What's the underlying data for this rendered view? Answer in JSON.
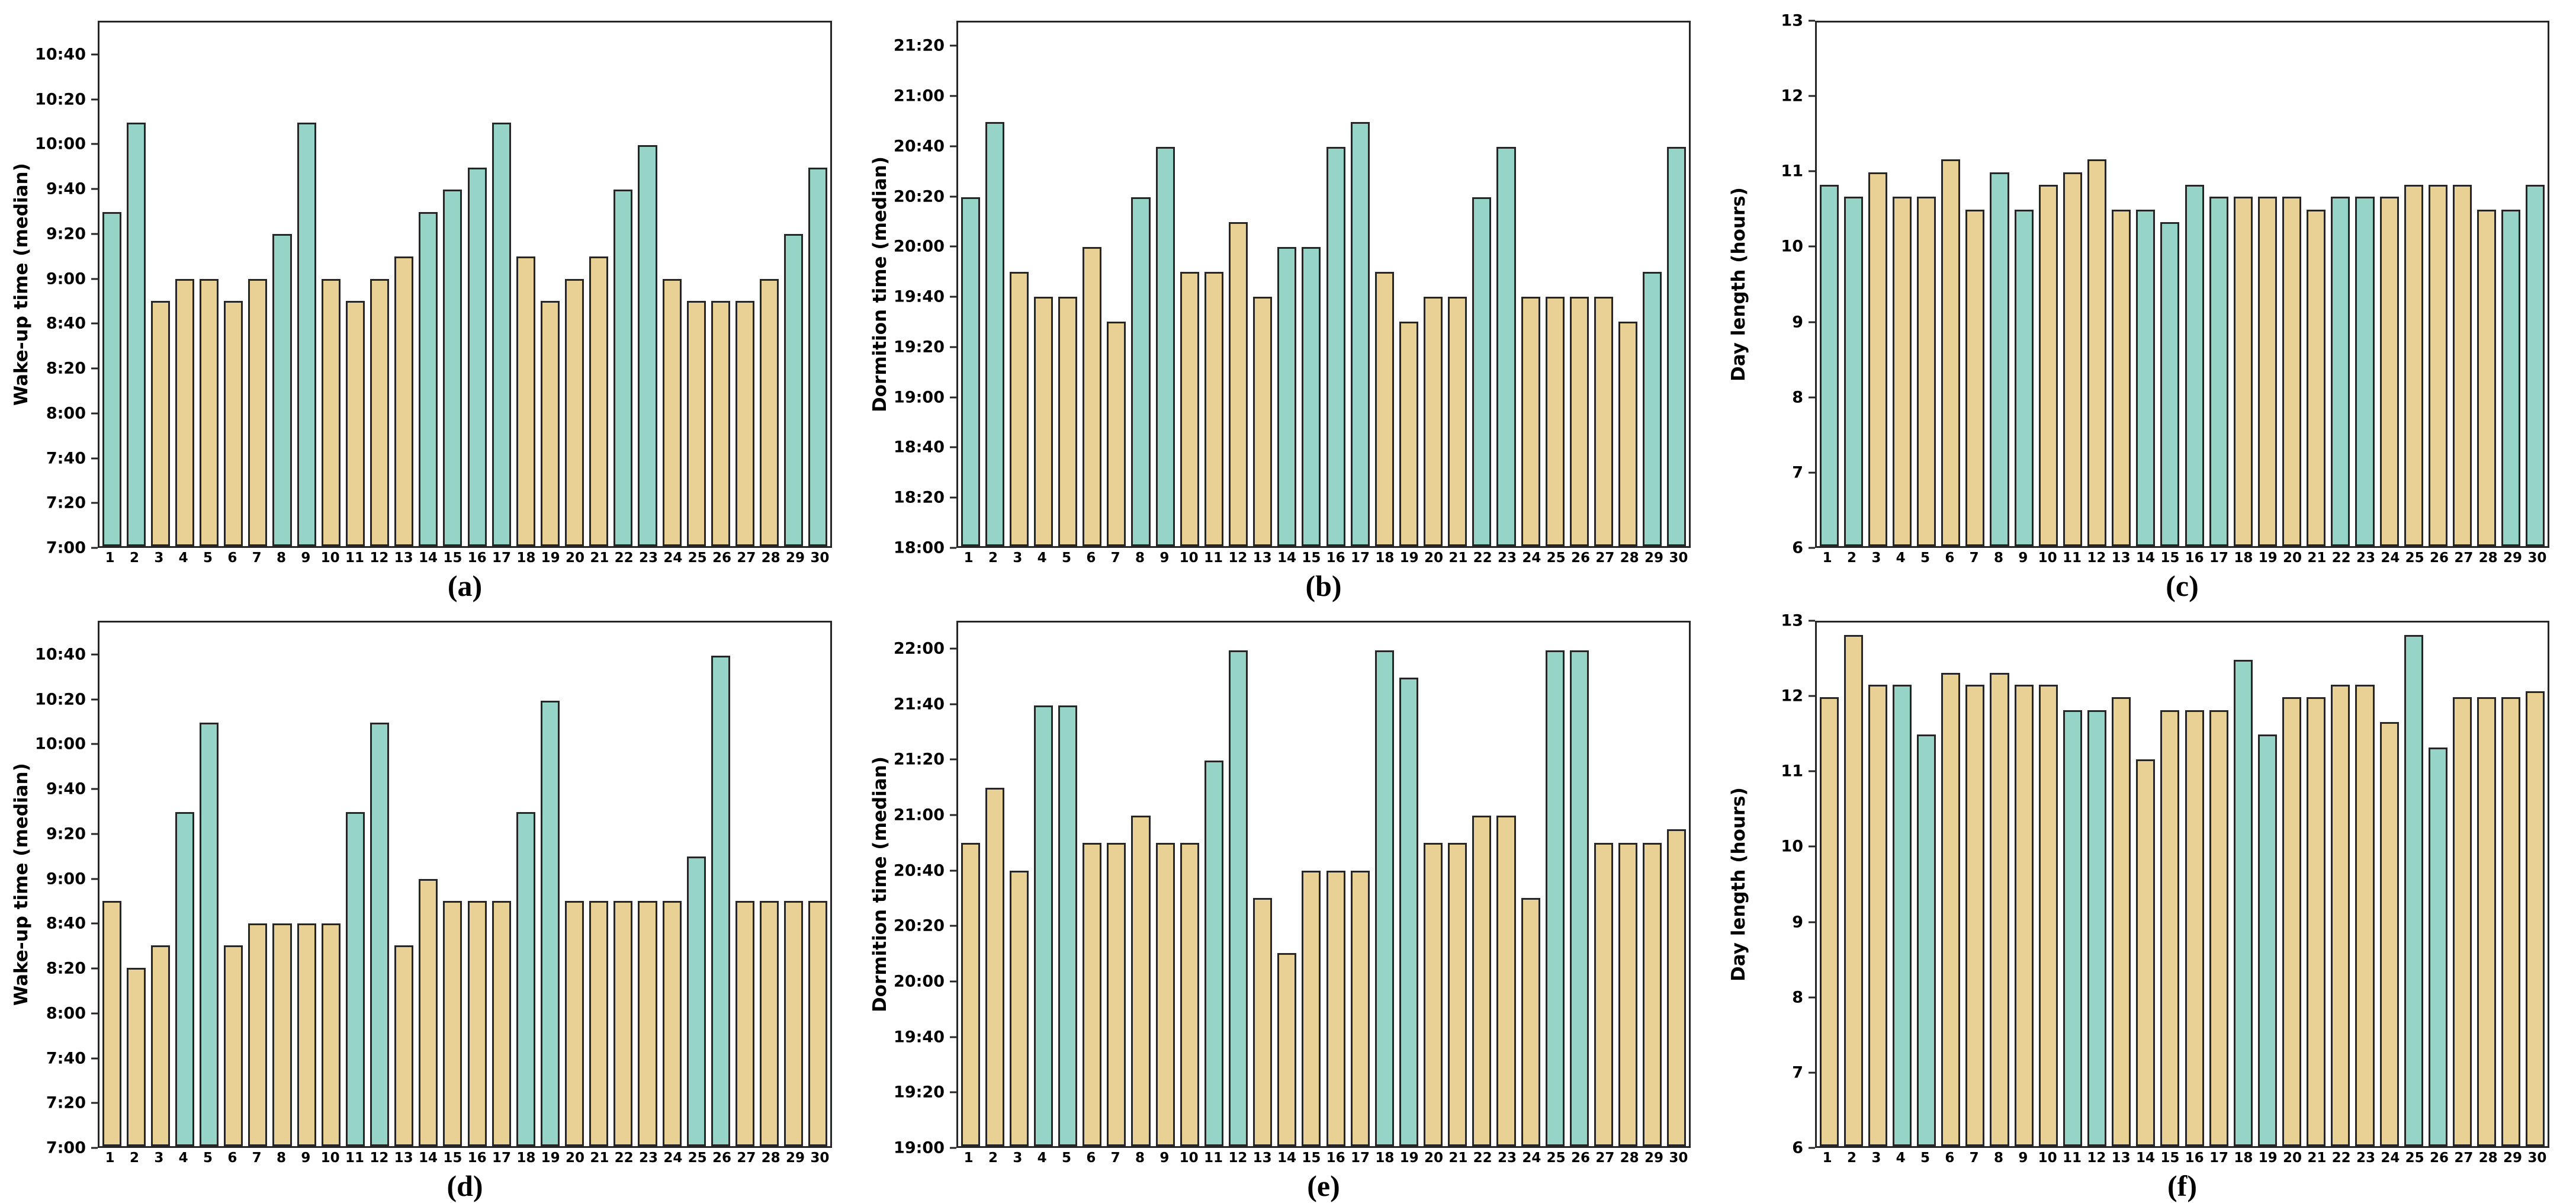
{
  "figure": {
    "background": "#ffffff"
  },
  "days": [
    1,
    2,
    3,
    4,
    5,
    6,
    7,
    8,
    9,
    10,
    11,
    12,
    13,
    14,
    15,
    16,
    17,
    18,
    19,
    20,
    21,
    22,
    23,
    24,
    25,
    26,
    27,
    28,
    29,
    30
  ],
  "colors": {
    "weekend_bar": "#96d4c8",
    "weekday_bar": "#e9d196",
    "edge": "#262626"
  },
  "chart_data": [
    {
      "panel": "a",
      "type": "bar",
      "ylabel": "Wake-up time (median)",
      "caption": "(a)",
      "axis": {
        "format": "time",
        "min": "7:00",
        "max": "10:55",
        "tick_first": "7:00",
        "tick_last": "10:40",
        "tick_step": 20,
        "grid": false
      },
      "weekend_days": [
        1,
        2,
        8,
        9,
        14,
        15,
        16,
        17,
        22,
        23,
        29,
        30
      ],
      "values": [
        "9:30",
        "10:10",
        "8:50",
        "9:00",
        "9:00",
        "8:50",
        "9:00",
        "9:20",
        "10:10",
        "9:00",
        "8:50",
        "9:00",
        "9:10",
        "9:30",
        "9:40",
        "9:50",
        "10:10",
        "9:10",
        "8:50",
        "9:00",
        "9:10",
        "9:40",
        "10:00",
        "9:00",
        "8:50",
        "8:50",
        "8:50",
        "9:00",
        "9:20",
        "9:50"
      ]
    },
    {
      "panel": "b",
      "type": "bar",
      "ylabel": "Dormition time (median)",
      "caption": "(b)",
      "axis": {
        "format": "time",
        "min": "18:00",
        "max": "21:30",
        "tick_first": "18:00",
        "tick_last": "21:20",
        "tick_step": 20,
        "grid": false
      },
      "weekend_days": [
        1,
        2,
        8,
        9,
        14,
        15,
        16,
        17,
        22,
        23,
        29,
        30
      ],
      "values": [
        "20:20",
        "20:50",
        "19:50",
        "19:40",
        "19:40",
        "20:00",
        "19:30",
        "20:20",
        "20:40",
        "19:50",
        "19:50",
        "20:10",
        "19:40",
        "20:00",
        "20:00",
        "20:40",
        "20:50",
        "19:50",
        "19:30",
        "19:40",
        "19:40",
        "20:20",
        "20:40",
        "19:40",
        "19:40",
        "19:40",
        "19:40",
        "19:30",
        "19:50",
        "20:40"
      ]
    },
    {
      "panel": "c",
      "type": "bar",
      "ylabel": "Day length (hours)",
      "caption": "(c)",
      "axis": {
        "format": "number",
        "min": 6,
        "max": 13,
        "tick_first": 6,
        "tick_last": 13,
        "tick_step": 1,
        "grid": false
      },
      "weekend_days": [
        1,
        2,
        8,
        9,
        14,
        15,
        16,
        17,
        22,
        23,
        29,
        30
      ],
      "values": [
        10.83,
        10.67,
        11.0,
        10.67,
        10.67,
        11.17,
        10.5,
        11.0,
        10.5,
        10.83,
        11.0,
        11.17,
        10.5,
        10.5,
        10.33,
        10.83,
        10.67,
        10.67,
        10.67,
        10.67,
        10.5,
        10.67,
        10.67,
        10.67,
        10.83,
        10.83,
        10.83,
        10.5,
        10.5,
        10.83
      ]
    },
    {
      "panel": "d",
      "type": "bar",
      "ylabel": "Wake-up time (median)",
      "caption": "(d)",
      "axis": {
        "format": "time",
        "min": "7:00",
        "max": "10:55",
        "tick_first": "7:00",
        "tick_last": "10:40",
        "tick_step": 20,
        "grid": false
      },
      "weekend_days": [
        4,
        5,
        11,
        12,
        18,
        19,
        25,
        26
      ],
      "values": [
        "8:50",
        "8:20",
        "8:30",
        "9:30",
        "10:10",
        "8:30",
        "8:40",
        "8:40",
        "8:40",
        "8:40",
        "9:30",
        "10:10",
        "8:30",
        "9:00",
        "8:50",
        "8:50",
        "8:50",
        "9:30",
        "10:20",
        "8:50",
        "8:50",
        "8:50",
        "8:50",
        "8:50",
        "9:10",
        "10:40",
        "8:50",
        "8:50",
        "8:50",
        "8:50"
      ]
    },
    {
      "panel": "e",
      "type": "bar",
      "ylabel": "Dormition time (median)",
      "caption": "(e)",
      "axis": {
        "format": "time",
        "min": "19:00",
        "max": "22:10",
        "tick_first": "19:00",
        "tick_last": "22:00",
        "tick_step": 20,
        "grid": false
      },
      "weekend_days": [
        4,
        5,
        11,
        12,
        18,
        19,
        25,
        26
      ],
      "values": [
        "20:50",
        "21:10",
        "20:40",
        "21:40",
        "21:40",
        "20:50",
        "20:50",
        "21:00",
        "20:50",
        "20:50",
        "21:20",
        "22:00",
        "20:30",
        "20:10",
        "20:40",
        "20:40",
        "20:40",
        "22:00",
        "21:50",
        "20:50",
        "20:50",
        "21:00",
        "21:00",
        "20:30",
        "22:00",
        "22:00",
        "20:50",
        "20:50",
        "20:50",
        "20:55"
      ]
    },
    {
      "panel": "f",
      "type": "bar",
      "ylabel": "Day length (hours)",
      "caption": "(f)",
      "axis": {
        "format": "number",
        "min": 6,
        "max": 13,
        "tick_first": 6,
        "tick_last": 13,
        "tick_step": 1,
        "grid": false
      },
      "weekend_days": [
        4,
        5,
        11,
        12,
        18,
        19,
        25,
        26
      ],
      "values": [
        12.0,
        12.83,
        12.17,
        12.17,
        11.5,
        12.33,
        12.17,
        12.33,
        12.17,
        12.17,
        11.83,
        11.83,
        12.0,
        11.17,
        11.83,
        11.83,
        11.83,
        12.5,
        11.5,
        12.0,
        12.0,
        12.17,
        12.17,
        11.67,
        12.83,
        11.33,
        12.0,
        12.0,
        12.0,
        12.08
      ]
    }
  ]
}
